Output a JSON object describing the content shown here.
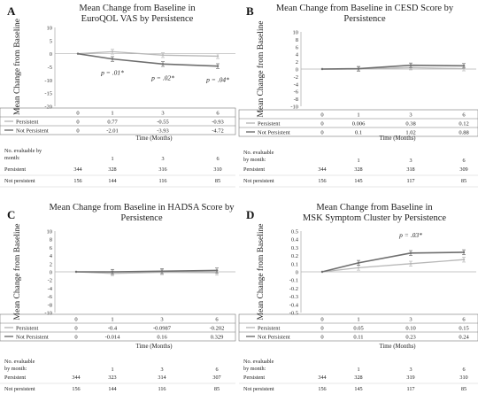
{
  "panels": [
    {
      "letter": "A",
      "title_lines": [
        "Mean Change from Baseline in",
        "EuroQOL VAS by Persistence"
      ],
      "ylabel": "Mean Change from Baseline",
      "xlabel": "Time (Months)",
      "yticks": [
        "10",
        "5",
        "0",
        "-5",
        "-10",
        "-15",
        "-20"
      ],
      "series_labels": [
        "Persistent",
        "Not Persistent"
      ],
      "table_header": [
        "0",
        "1",
        "3",
        "6"
      ],
      "table_rows": [
        [
          "0",
          "0.77",
          "-0.55",
          "-0.93"
        ],
        [
          "0",
          "-2.01",
          "-3.93",
          "-4.72"
        ]
      ],
      "pvalues": [
        "p = .01*",
        "p = .02*",
        "p = .04*"
      ],
      "counts_label": [
        "No. evaluable by",
        "month:"
      ],
      "counts_header": [
        "1",
        "3",
        "6"
      ],
      "counts_rows": [
        {
          "label": "Persistent",
          "values": [
            "344",
            "328",
            "316",
            "310"
          ]
        },
        {
          "label": "Not persistent",
          "values": [
            "156",
            "144",
            "116",
            "85"
          ]
        }
      ]
    },
    {
      "letter": "B",
      "title_lines": [
        "Mean Change from Baseline in CESD Score by",
        "Persistence"
      ],
      "ylabel": "Mean Change from Baseline",
      "xlabel": "Time (Months)",
      "yticks": [
        "10",
        "8",
        "6",
        "4",
        "2",
        "0",
        "-2",
        "-4",
        "-6",
        "-8",
        "-10"
      ],
      "series_labels": [
        "Persistent",
        "Not Persistent"
      ],
      "table_header": [
        "0",
        "1",
        "3",
        "6"
      ],
      "table_rows": [
        [
          "0",
          "0.006",
          "0.38",
          "0.12"
        ],
        [
          "0",
          "0.1",
          "1.02",
          "0.88"
        ]
      ],
      "pvalues": [],
      "counts_label": [
        "No. evaluable",
        "by month:"
      ],
      "counts_header": [
        "1",
        "3",
        "6"
      ],
      "counts_rows": [
        {
          "label": "Persistent",
          "values": [
            "344",
            "328",
            "318",
            "309"
          ]
        },
        {
          "label": "Not persistent",
          "values": [
            "156",
            "145",
            "117",
            "85"
          ]
        }
      ]
    },
    {
      "letter": "C",
      "title_lines": [
        "Mean Change from Baseline in HADSA Score by",
        "Persistence"
      ],
      "ylabel": "Mean Change from Baseline",
      "xlabel": "Time (Months)",
      "yticks": [
        "10",
        "8",
        "6",
        "4",
        "2",
        "0",
        "-2",
        "-4",
        "-6",
        "-8",
        "-10"
      ],
      "series_labels": [
        "Persistent",
        "Not Persistent"
      ],
      "table_header": [
        "0",
        "1",
        "3",
        "6"
      ],
      "table_rows": [
        [
          "0",
          "-0.4",
          "-0.0987",
          "-0.202"
        ],
        [
          "0",
          "-0.014",
          "0.16",
          "0.329"
        ]
      ],
      "pvalues": [],
      "counts_label": [
        "No. evaluable",
        "by month:"
      ],
      "counts_header": [
        "1",
        "3",
        "6"
      ],
      "counts_rows": [
        {
          "label": "Persistent",
          "values": [
            "344",
            "323",
            "314",
            "307"
          ]
        },
        {
          "label": "Not persistent",
          "values": [
            "156",
            "144",
            "116",
            "85"
          ]
        }
      ]
    },
    {
      "letter": "D",
      "title_lines": [
        "Mean Change from Baseline in",
        "MSK Symptom Cluster by Persistence"
      ],
      "ylabel": "Mean Change from Baseline",
      "xlabel": "Time (Months)",
      "yticks": [
        "0.5",
        "0.4",
        "0.3",
        "0.2",
        "0.1",
        "0",
        "-0.1",
        "-0.2",
        "-0.3",
        "-0.4",
        "-0.5"
      ],
      "series_labels": [
        "Persistent",
        "Not Persistent"
      ],
      "table_header": [
        "0",
        "1",
        "3",
        "6"
      ],
      "table_rows": [
        [
          "0",
          "0.05",
          "0.10",
          "0.15"
        ],
        [
          "0",
          "0.11",
          "0.23",
          "0.24"
        ]
      ],
      "pvalues": [
        "p = .03*"
      ],
      "counts_label": [
        "No. evaluable",
        "by month:"
      ],
      "counts_header": [
        "1",
        "3",
        "6"
      ],
      "counts_rows": [
        {
          "label": "Persistent",
          "values": [
            "344",
            "328",
            "319",
            "310"
          ]
        },
        {
          "label": "Not persistent",
          "values": [
            "156",
            "145",
            "117",
            "85"
          ]
        }
      ]
    }
  ],
  "chart_data": [
    {
      "type": "line",
      "title": "Mean Change from Baseline in EuroQOL VAS by Persistence",
      "xlabel": "Time (Months)",
      "ylabel": "Mean Change from Baseline",
      "x": [
        0,
        1,
        3,
        6
      ],
      "ylim": [
        -20,
        10
      ],
      "grid": false,
      "series": [
        {
          "name": "Persistent",
          "color": "#b8b8b8",
          "values": [
            0,
            0.77,
            -0.55,
            -0.93
          ]
        },
        {
          "name": "Not Persistent",
          "color": "#6e6e6e",
          "values": [
            0,
            -2.01,
            -3.93,
            -4.72
          ]
        }
      ],
      "annotations": [
        "p = .01*",
        "p = .02*",
        "p = .04*"
      ]
    },
    {
      "type": "line",
      "title": "Mean Change from Baseline in CESD Score by Persistence",
      "xlabel": "Time (Months)",
      "ylabel": "Mean Change from Baseline",
      "x": [
        0,
        1,
        3,
        6
      ],
      "ylim": [
        -10,
        10
      ],
      "grid": false,
      "series": [
        {
          "name": "Persistent",
          "color": "#b8b8b8",
          "values": [
            0,
            0.006,
            0.38,
            0.12
          ]
        },
        {
          "name": "Not Persistent",
          "color": "#6e6e6e",
          "values": [
            0,
            0.1,
            1.02,
            0.88
          ]
        }
      ]
    },
    {
      "type": "line",
      "title": "Mean Change from Baseline in HADSA Score by Persistence",
      "xlabel": "Time (Months)",
      "ylabel": "Mean Change from Baseline",
      "x": [
        0,
        1,
        3,
        6
      ],
      "ylim": [
        -10,
        10
      ],
      "grid": false,
      "series": [
        {
          "name": "Persistent",
          "color": "#b8b8b8",
          "values": [
            0,
            -0.4,
            -0.0987,
            -0.202
          ]
        },
        {
          "name": "Not Persistent",
          "color": "#6e6e6e",
          "values": [
            0,
            -0.014,
            0.16,
            0.329
          ]
        }
      ]
    },
    {
      "type": "line",
      "title": "Mean Change from Baseline in MSK Symptom Cluster by Persistence",
      "xlabel": "Time (Months)",
      "ylabel": "Mean Change from Baseline",
      "x": [
        0,
        1,
        3,
        6
      ],
      "ylim": [
        -0.5,
        0.5
      ],
      "grid": false,
      "series": [
        {
          "name": "Persistent",
          "color": "#b8b8b8",
          "values": [
            0,
            0.05,
            0.1,
            0.15
          ]
        },
        {
          "name": "Not Persistent",
          "color": "#6e6e6e",
          "values": [
            0,
            0.11,
            0.23,
            0.24
          ]
        }
      ],
      "annotations": [
        "p = .03*"
      ]
    }
  ]
}
